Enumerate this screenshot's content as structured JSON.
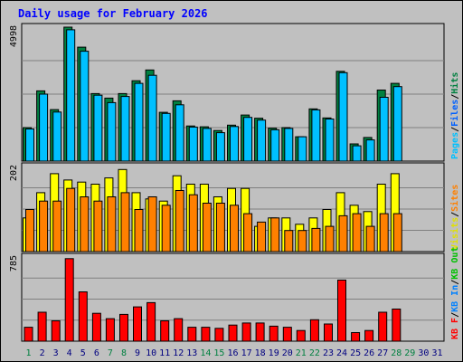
{
  "chart_data": {
    "type": "bar",
    "title": "Daily usage for February 2026",
    "days": [
      "1",
      "2",
      "3",
      "4",
      "5",
      "6",
      "7",
      "8",
      "9",
      "10",
      "11",
      "12",
      "13",
      "14",
      "15",
      "16",
      "17",
      "18",
      "19",
      "20",
      "21",
      "22",
      "23",
      "24",
      "25",
      "26",
      "27",
      "28",
      "29",
      "30",
      "31"
    ],
    "weekend_days": [
      "1",
      "7",
      "8",
      "14",
      "15",
      "21",
      "22",
      "28",
      "29"
    ],
    "panels": [
      {
        "id": "hits-files-pages",
        "max_label": "4998",
        "ymax": 4998,
        "legend": [
          "Pages",
          "/",
          "Files",
          "/",
          "Hits"
        ],
        "series": [
          {
            "name": "Hits",
            "color": "#008040",
            "values": [
              1250,
              2620,
              1920,
              4998,
              4250,
              2520,
              2350,
              2520,
              3000,
              3400,
              1820,
              2250,
              1310,
              1280,
              1140,
              1340,
              1720,
              1600,
              1230,
              1250,
              910,
              1950,
              1610,
              3350,
              640,
              880,
              2650,
              2900,
              null,
              null,
              null
            ]
          },
          {
            "name": "Files",
            "color": "#00c0ff",
            "values": [
              1200,
              2500,
              1830,
              4900,
              4100,
              2460,
              2180,
              2410,
              2900,
              3200,
              1780,
              2100,
              1270,
              1220,
              1060,
              1290,
              1630,
              1530,
              1170,
              1220,
              910,
              1910,
              1570,
              3300,
              570,
              790,
              2380,
              2780,
              null,
              null,
              null
            ]
          },
          {
            "name": "Pages",
            "color": "#00a0c0",
            "values": [
              null,
              null,
              null,
              null,
              null,
              null,
              null,
              null,
              null,
              null,
              null,
              null,
              null,
              null,
              null,
              null,
              null,
              null,
              null,
              null,
              null,
              null,
              null,
              null,
              null,
              null,
              null,
              null,
              null,
              null,
              null
            ]
          }
        ]
      },
      {
        "id": "visits-sites",
        "max_label": "202",
        "ymax": 202,
        "legend": [
          "Visits",
          "/",
          "Sites"
        ],
        "series": [
          {
            "name": "Visits",
            "color": "#ffff00",
            "values": [
              80,
              140,
              185,
              170,
              165,
              160,
              175,
              195,
              140,
              125,
              120,
              180,
              160,
              160,
              130,
              150,
              150,
              60,
              80,
              80,
              65,
              80,
              100,
              140,
              110,
              95,
              160,
              185,
              null,
              null,
              null
            ]
          },
          {
            "name": "Sites",
            "color": "#ff8000",
            "values": [
              100,
              120,
              120,
              150,
              130,
              120,
              130,
              140,
              100,
              130,
              110,
              145,
              135,
              115,
              115,
              110,
              90,
              70,
              80,
              50,
              50,
              55,
              60,
              85,
              90,
              60,
              90,
              90,
              null,
              null,
              null
            ]
          }
        ]
      },
      {
        "id": "kbytes",
        "max_label": "785",
        "ymax": 785,
        "legend": [
          "KB F",
          "/",
          "KB In",
          "/",
          "KB Out"
        ],
        "series": [
          {
            "name": "KB F",
            "color": "#ff0000",
            "values": [
              130,
              270,
              190,
              770,
              460,
              260,
              210,
              250,
              320,
              360,
              190,
              210,
              130,
              130,
              120,
              150,
              170,
              170,
              140,
              130,
              100,
              200,
              160,
              570,
              80,
              100,
              270,
              300,
              null,
              null,
              null
            ]
          }
        ]
      }
    ]
  }
}
